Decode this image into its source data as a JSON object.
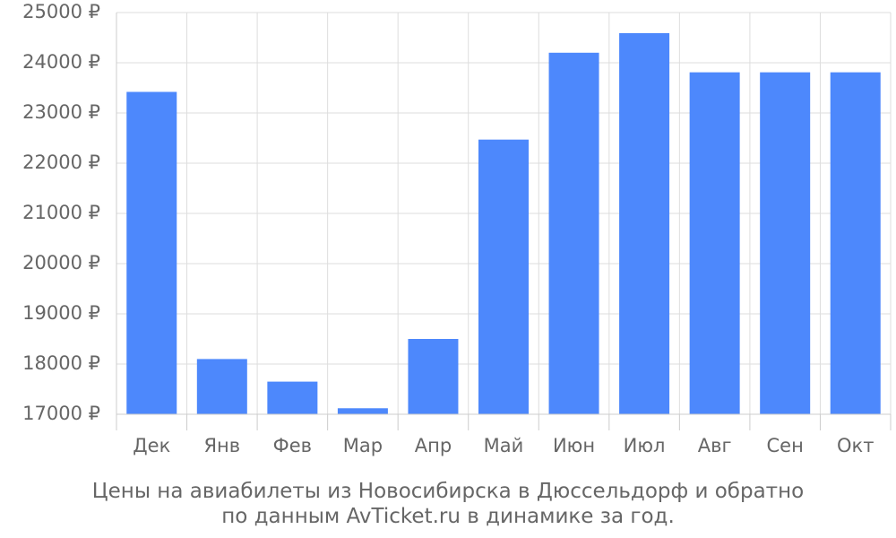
{
  "chart_data": {
    "type": "bar",
    "categories": [
      "Дек",
      "Янв",
      "Фев",
      "Мар",
      "Апр",
      "Май",
      "Июн",
      "Июл",
      "Авг",
      "Сен",
      "Окт"
    ],
    "values": [
      23420,
      18100,
      17650,
      17120,
      18500,
      22470,
      24200,
      24590,
      23810,
      23810,
      23810
    ],
    "ylim": [
      17000,
      25000
    ],
    "yticks": [
      17000,
      18000,
      19000,
      20000,
      21000,
      22000,
      23000,
      24000,
      25000
    ],
    "y_unit": "₽",
    "grid": true,
    "bar_color": "#4d88fc",
    "title_line1": "Цены на авиабилеты из Новосибирска в Дюссельдорф и обратно",
    "title_line2": "по данным AvTicket.ru в динамике за год."
  }
}
